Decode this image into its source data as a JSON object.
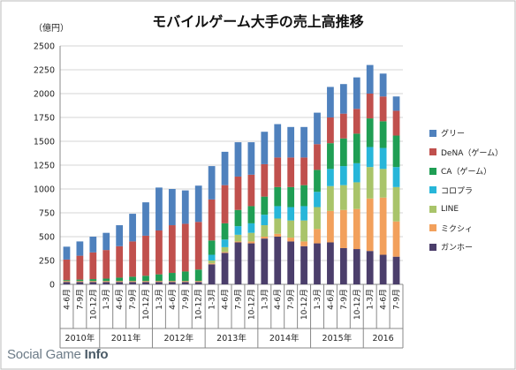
{
  "chart_data": {
    "type": "bar",
    "stacked": true,
    "title": "モバイルゲーム大手の売上高推移",
    "ylabel": "（億円）",
    "xlabel": "",
    "ylim": [
      0,
      2500
    ],
    "yticks": [
      0,
      250,
      500,
      750,
      1000,
      1250,
      1500,
      1750,
      2000,
      2250,
      2500
    ],
    "grid": true,
    "legend_position": "right",
    "categories": [
      "4-6月",
      "7-9月",
      "10-12月",
      "1-3月",
      "4-6月",
      "7-9月",
      "10-12月",
      "1-3月",
      "4-6月",
      "7-9月",
      "10-12月",
      "1-3月",
      "4-6月",
      "7-9月",
      "10-12月",
      "1-3月",
      "4-6月",
      "7-9月",
      "10-12月",
      "1-3月",
      "4-6月",
      "7-9月",
      "10-12月",
      "1-3月",
      "4-6月",
      "7-9月"
    ],
    "year_groups": [
      {
        "label": "2010年",
        "count": 3
      },
      {
        "label": "2011年",
        "count": 4
      },
      {
        "label": "2012年",
        "count": 4
      },
      {
        "label": "2013年",
        "count": 4
      },
      {
        "label": "2014年",
        "count": 4
      },
      {
        "label": "2015年",
        "count": 4
      },
      {
        "label": "2016",
        "count": 3
      }
    ],
    "series": [
      {
        "name": "ガンホー",
        "color": "#4b3e6b",
        "values": [
          25,
          25,
          25,
          25,
          25,
          25,
          25,
          25,
          25,
          25,
          25,
          210,
          330,
          440,
          430,
          480,
          500,
          450,
          400,
          430,
          440,
          380,
          370,
          350,
          310,
          290
        ]
      },
      {
        "name": "ミクシィ",
        "color": "#f2a05c",
        "values": [
          10,
          10,
          10,
          10,
          10,
          10,
          10,
          10,
          10,
          10,
          10,
          10,
          10,
          10,
          20,
          20,
          30,
          40,
          50,
          150,
          330,
          400,
          420,
          550,
          600,
          370
        ]
      },
      {
        "name": "LINE",
        "color": "#a9c46a",
        "values": [
          0,
          0,
          0,
          0,
          0,
          0,
          0,
          0,
          0,
          0,
          0,
          30,
          50,
          70,
          90,
          120,
          160,
          180,
          220,
          230,
          260,
          260,
          280,
          330,
          300,
          360
        ]
      },
      {
        "name": "コロプラ",
        "color": "#27b6d9",
        "values": [
          0,
          0,
          0,
          0,
          0,
          0,
          0,
          0,
          0,
          0,
          0,
          60,
          80,
          90,
          100,
          110,
          130,
          140,
          150,
          160,
          180,
          200,
          200,
          210,
          220,
          210
        ]
      },
      {
        "name": "CA（ゲーム）",
        "color": "#1f9e54",
        "values": [
          10,
          15,
          20,
          25,
          35,
          45,
          55,
          70,
          85,
          100,
          120,
          150,
          170,
          170,
          180,
          190,
          200,
          210,
          220,
          230,
          270,
          290,
          310,
          300,
          280,
          330
        ]
      },
      {
        "name": "DeNA（ゲーム）",
        "color": "#c0504d",
        "values": [
          215,
          250,
          280,
          300,
          330,
          370,
          420,
          460,
          500,
          500,
          500,
          430,
          400,
          350,
          330,
          340,
          310,
          310,
          290,
          270,
          270,
          260,
          260,
          260,
          260,
          260
        ]
      },
      {
        "name": "グリー",
        "color": "#4f81bd",
        "values": [
          135,
          150,
          165,
          180,
          220,
          290,
          350,
          450,
          380,
          350,
          380,
          350,
          350,
          360,
          340,
          340,
          350,
          320,
          320,
          330,
          320,
          310,
          330,
          300,
          240,
          150
        ]
      }
    ]
  },
  "watermark": {
    "prefix": "Social Game ",
    "bold": "Info"
  }
}
